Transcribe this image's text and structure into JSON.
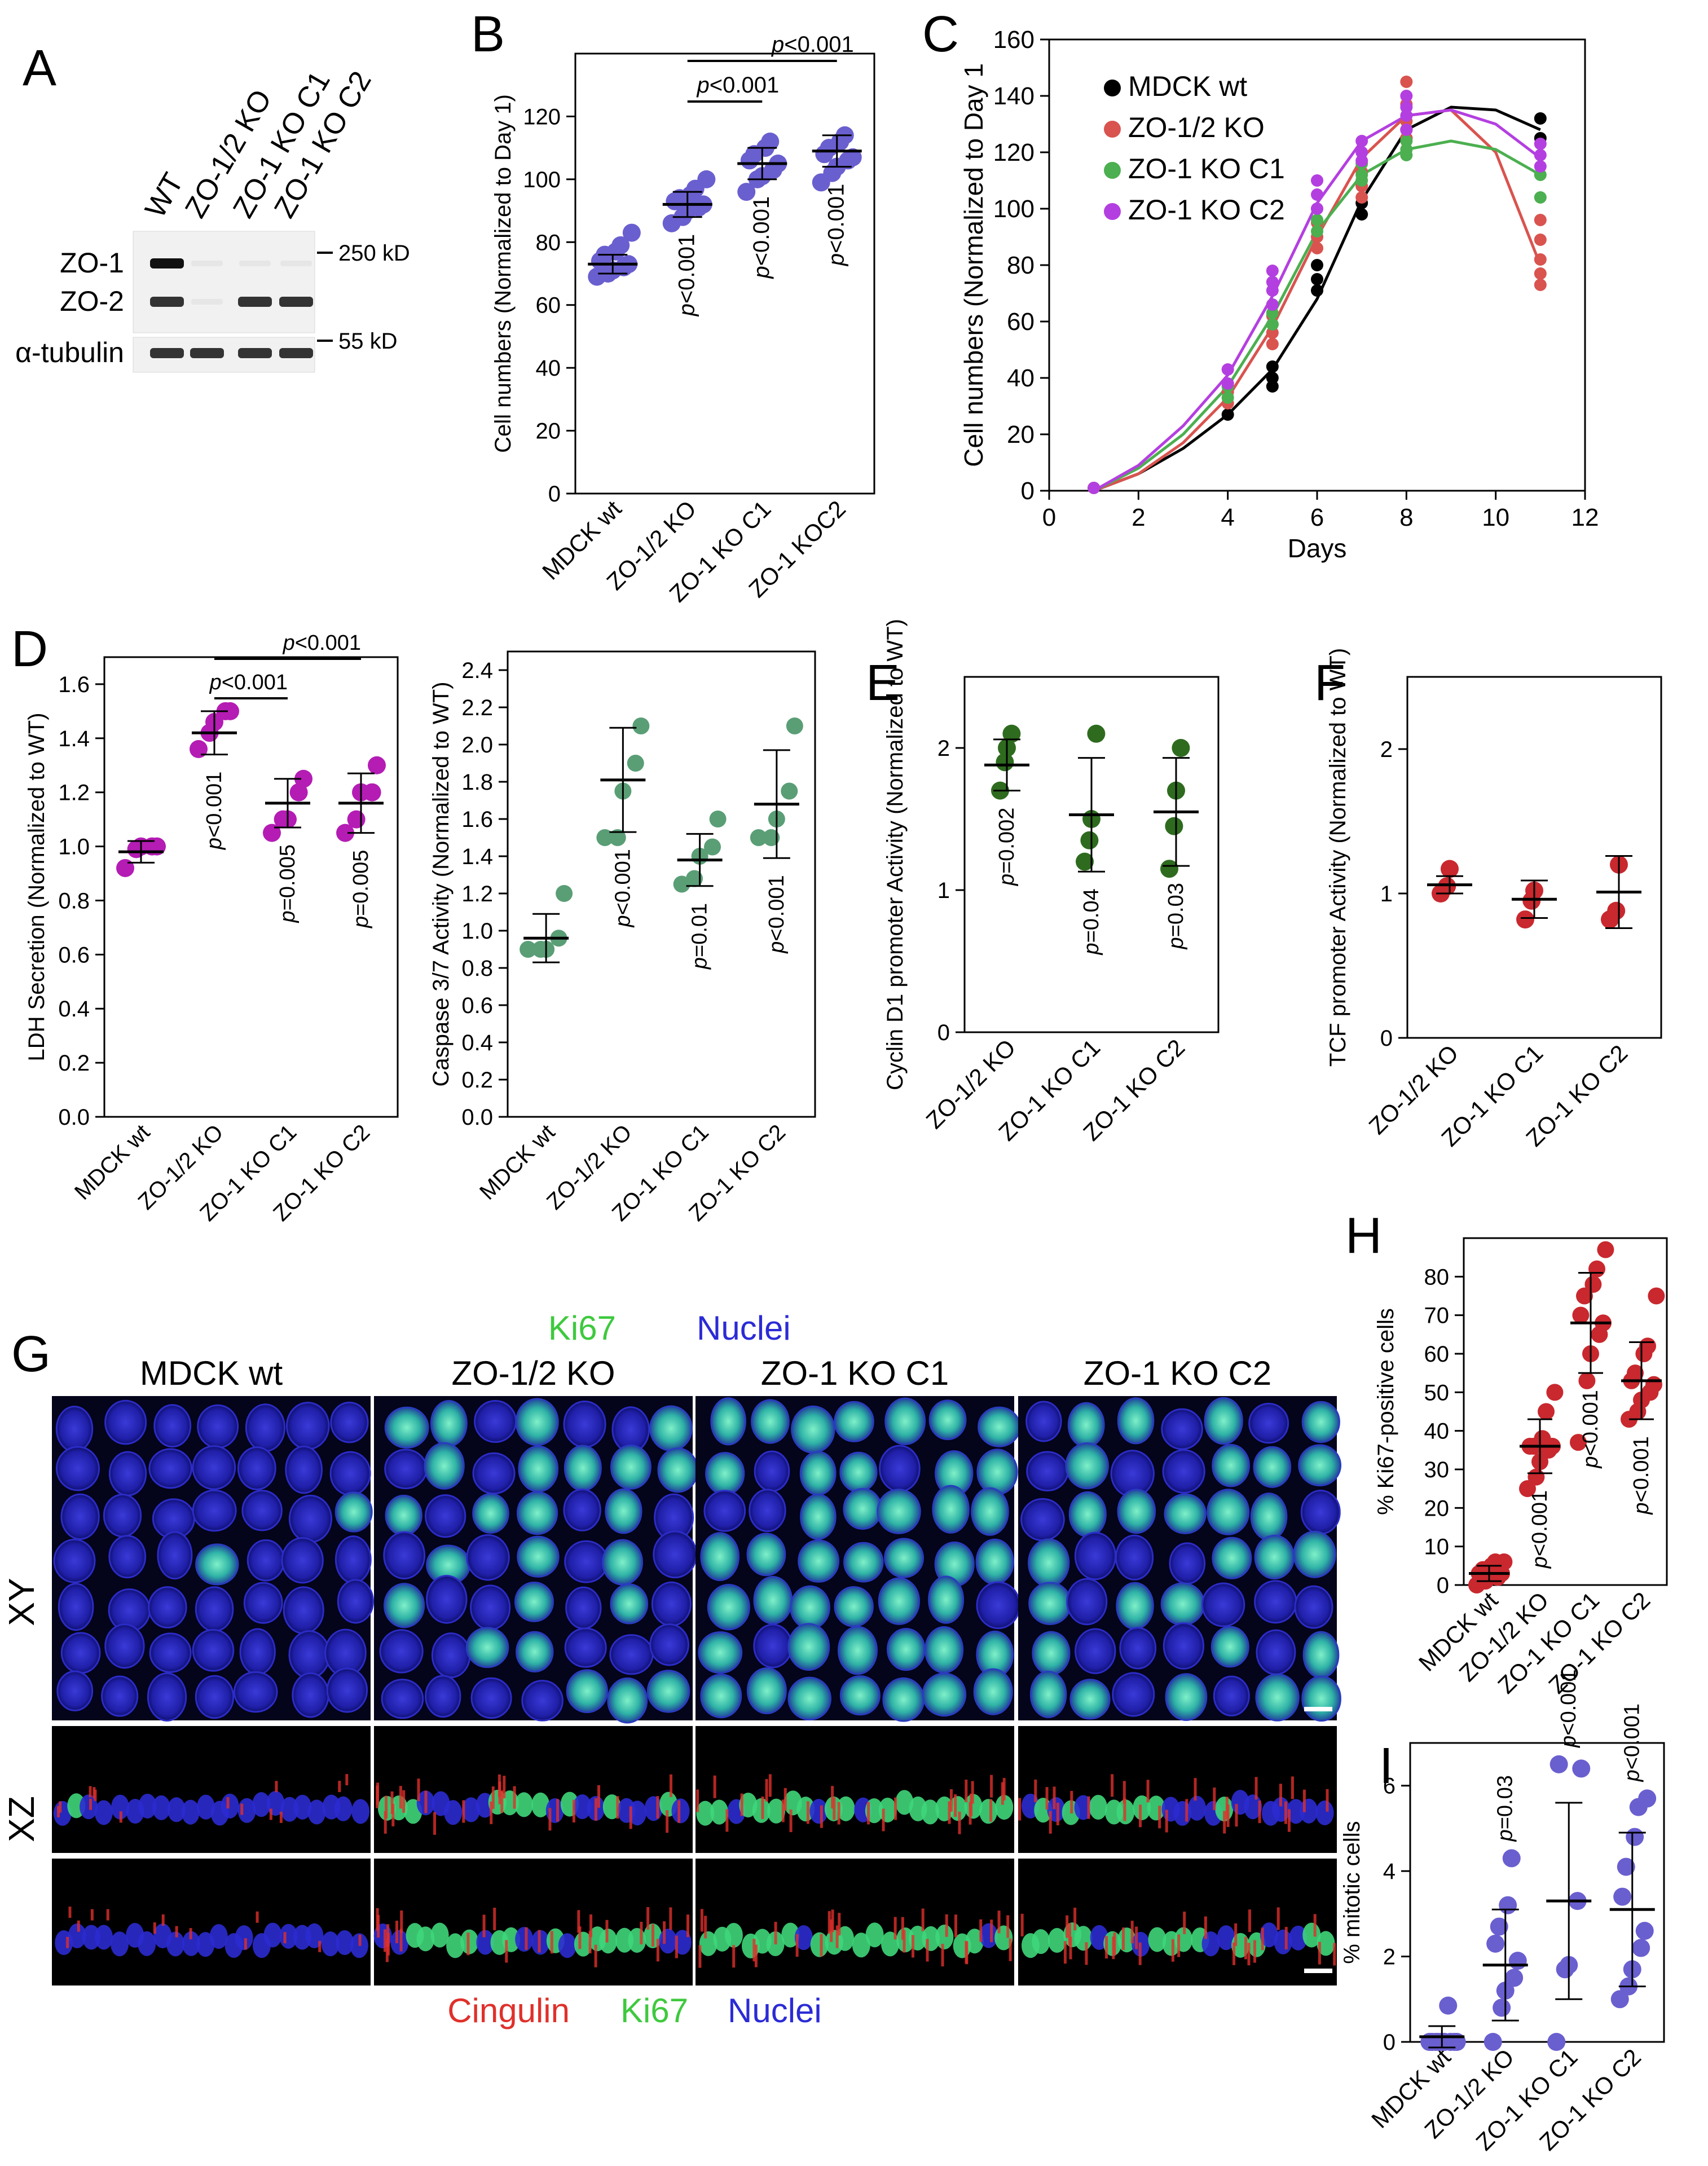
{
  "panel_letters": [
    "A",
    "B",
    "C",
    "D",
    "E",
    "F",
    "G",
    "H",
    "I"
  ],
  "colors": {
    "purple_B": "#6a5fcf",
    "black": "#000000",
    "red": "#d9534f",
    "green": "#4caf50",
    "violet": "#b43fe0",
    "magenta": "#b41cb4",
    "teal": "#5a9e76",
    "darkgreen": "#2e6b1f",
    "crimson": "#c8282e",
    "blue": "#1a1aff",
    "ki67": "#33cc33",
    "cingulin": "#e0302a"
  },
  "blot": {
    "lanes": [
      "WT",
      "ZO-1/2 KO",
      "ZO-1 KO C1",
      "ZO-1 KO C2"
    ],
    "bands": [
      "ZO-1",
      "ZO-2",
      "α-tubulin"
    ],
    "markers": [
      "250 kD",
      "55 kD"
    ],
    "presence": {
      "ZO-1": [
        1,
        0,
        0,
        0
      ],
      "ZO-2": [
        1,
        0,
        1,
        1
      ],
      "α-tubulin": [
        1,
        1,
        1,
        1
      ]
    }
  },
  "chart_data": [
    {
      "panel": "B",
      "type": "scatter",
      "ylabel": "Cell numbers (Normalized to Day 1)",
      "ylim": [
        0,
        140
      ],
      "yticks": [
        0,
        20,
        40,
        60,
        80,
        100,
        120
      ],
      "categories": [
        "MDCK wt",
        "ZO-1/2 KO",
        "ZO-1 KO C1",
        "ZO-1 KOC2"
      ],
      "points": [
        [
          69,
          70,
          71,
          72,
          73,
          74,
          76,
          77,
          79,
          83
        ],
        [
          86,
          88,
          90,
          91,
          92,
          93,
          94,
          95,
          97,
          100
        ],
        [
          96,
          100,
          101,
          103,
          105,
          106,
          108,
          110,
          112
        ],
        [
          99,
          102,
          104,
          106,
          107,
          108,
          110,
          112,
          114
        ]
      ],
      "means": [
        73,
        92,
        105,
        109
      ],
      "sd": [
        3,
        4,
        5,
        5
      ],
      "pvalues": [
        "",
        "p<0.001",
        "p<0.001",
        "p<0.001"
      ],
      "brackets": [
        {
          "from": 1,
          "to": 2,
          "label": "p<0.001"
        },
        {
          "from": 1,
          "to": 3,
          "label": "p<0.001"
        }
      ]
    },
    {
      "panel": "C",
      "type": "scatter",
      "xlabel": "Days",
      "ylabel": "Cell numbers (Normalized to Day 1",
      "xlim": [
        0,
        12
      ],
      "ylim": [
        0,
        160
      ],
      "xticks": [
        0,
        2,
        4,
        6,
        8,
        10,
        12
      ],
      "yticks": [
        0,
        20,
        40,
        60,
        80,
        100,
        120,
        140,
        160
      ],
      "series": [
        {
          "name": "MDCK wt",
          "x": [
            1,
            4,
            5,
            5,
            5,
            6,
            6,
            6,
            7,
            7,
            8,
            8,
            11,
            11
          ],
          "y": [
            1,
            27,
            37,
            40,
            44,
            71,
            75,
            80,
            98,
            102,
            125,
            128,
            125,
            132
          ]
        },
        {
          "name": "ZO-1/2 KO",
          "x": [
            1,
            4,
            4,
            5,
            5,
            5,
            5,
            6,
            6,
            6,
            7,
            7,
            7,
            8,
            8,
            8,
            8,
            11,
            11,
            11,
            11,
            11
          ],
          "y": [
            1,
            31,
            35,
            52,
            56,
            59,
            62,
            86,
            90,
            95,
            104,
            108,
            113,
            125,
            131,
            137,
            145,
            73,
            77,
            82,
            89,
            96
          ]
        },
        {
          "name": "ZO-1 KO C1",
          "x": [
            1,
            4,
            4,
            5,
            5,
            5,
            6,
            6,
            6,
            7,
            7,
            7,
            8,
            8,
            8,
            11,
            11
          ],
          "y": [
            1,
            33,
            37,
            59,
            63,
            66,
            92,
            96,
            100,
            110,
            112,
            116,
            119,
            121,
            124,
            104,
            112
          ]
        },
        {
          "name": "ZO-1 KO C2",
          "x": [
            1,
            4,
            4,
            5,
            5,
            5,
            5,
            6,
            6,
            6,
            7,
            7,
            7,
            8,
            8,
            8,
            8,
            11,
            11,
            11
          ],
          "y": [
            1,
            38,
            43,
            66,
            71,
            74,
            78,
            100,
            105,
            110,
            117,
            120,
            124,
            128,
            133,
            136,
            140,
            115,
            119,
            123
          ]
        }
      ],
      "fits": [
        {
          "name": "MDCK wt",
          "x": [
            1,
            2,
            3,
            4,
            5,
            6,
            7,
            8,
            9,
            10,
            11
          ],
          "y": [
            0,
            6,
            15,
            27,
            43,
            68,
            103,
            128,
            136,
            135,
            128
          ]
        },
        {
          "name": "ZO-1/2 KO",
          "x": [
            1,
            2,
            3,
            4,
            5,
            6,
            7,
            8,
            9,
            10,
            11
          ],
          "y": [
            0,
            6,
            17,
            33,
            58,
            90,
            118,
            133,
            135,
            120,
            80
          ]
        },
        {
          "name": "ZO-1 KO C1",
          "x": [
            1,
            2,
            3,
            4,
            5,
            6,
            7,
            8,
            9,
            10,
            11
          ],
          "y": [
            0,
            8,
            20,
            37,
            62,
            92,
            112,
            121,
            124,
            121,
            112
          ]
        },
        {
          "name": "ZO-1 KO C2",
          "x": [
            1,
            2,
            3,
            4,
            5,
            6,
            7,
            8,
            9,
            10,
            11
          ],
          "y": [
            0,
            9,
            23,
            41,
            69,
            102,
            124,
            133,
            135,
            130,
            118
          ]
        }
      ]
    },
    {
      "panel": "D1",
      "type": "scatter",
      "ylabel": "LDH Secretion (Normalized to WT)",
      "ylim": [
        0,
        1.7
      ],
      "yticks": [
        "0.0",
        "0.2",
        "0.4",
        "0.6",
        "0.8",
        "1.0",
        "1.2",
        "1.4",
        "1.6"
      ],
      "categories": [
        "MDCK wt",
        "ZO-1/2 KO",
        "ZO-1 KO C1",
        "ZO-1 KO C2"
      ],
      "points": [
        [
          0.92,
          0.99,
          1.0,
          1.0,
          1.0
        ],
        [
          1.36,
          1.42,
          1.46,
          1.5,
          1.5
        ],
        [
          1.05,
          1.1,
          1.1,
          1.2,
          1.25
        ],
        [
          1.05,
          1.1,
          1.2,
          1.2,
          1.3
        ]
      ],
      "means": [
        0.98,
        1.42,
        1.16,
        1.16
      ],
      "sd": [
        0.04,
        0.08,
        0.09,
        0.11
      ],
      "pvalues": [
        "",
        "p<0.001",
        "p=0.005",
        "p=0.005"
      ],
      "brackets": [
        {
          "from": 1,
          "to": 2,
          "label": "p<0.001"
        },
        {
          "from": 1,
          "to": 3,
          "label": "p<0.001"
        }
      ]
    },
    {
      "panel": "D2",
      "type": "scatter",
      "ylabel": "Caspase 3/7 Activity (Normalized to WT)",
      "ylim": [
        0,
        2.5
      ],
      "yticks": [
        "0.0",
        "0.2",
        "0.4",
        "0.6",
        "0.8",
        "1.0",
        "1.2",
        "1.4",
        "1.6",
        "1.8",
        "2.0",
        "2.2",
        "2.4"
      ],
      "categories": [
        "MDCK wt",
        "ZO-1/2 KO",
        "ZO-1 KO C1",
        "ZO-1 KO C2"
      ],
      "points": [
        [
          0.9,
          0.9,
          0.9,
          0.96,
          1.2
        ],
        [
          1.5,
          1.5,
          1.75,
          1.9,
          2.1
        ],
        [
          1.25,
          1.28,
          1.4,
          1.45,
          1.6
        ],
        [
          1.5,
          1.5,
          1.6,
          1.75,
          2.1
        ]
      ],
      "means": [
        0.96,
        1.81,
        1.38,
        1.68
      ],
      "sd": [
        0.13,
        0.28,
        0.14,
        0.29
      ],
      "pvalues": [
        "",
        "p<0.001",
        "p=0.01",
        "p<0.001"
      ]
    },
    {
      "panel": "E",
      "type": "scatter",
      "ylabel": "Cyclin D1 promoter Activity (Normalized to WT)",
      "ylim": [
        0,
        2.5
      ],
      "yticks": [
        "0",
        "1",
        "2"
      ],
      "categories": [
        "ZO-1/2 KO",
        "ZO-1 KO C1",
        "ZO-1 KO C2"
      ],
      "points": [
        [
          1.7,
          1.9,
          2.0,
          2.1
        ],
        [
          1.2,
          1.35,
          1.5,
          2.1
        ],
        [
          1.15,
          1.45,
          1.7,
          2.0
        ]
      ],
      "means": [
        1.88,
        1.53,
        1.55
      ],
      "sd": [
        0.18,
        0.4,
        0.38
      ],
      "pvalues": [
        "p=0.002",
        "p=0.04",
        "p=0.03"
      ]
    },
    {
      "panel": "F",
      "type": "scatter",
      "ylabel": "TCF promoter Activity (Normalized to WT)",
      "ylim": [
        0,
        2.5
      ],
      "yticks": [
        "0",
        "1",
        "2"
      ],
      "categories": [
        "ZO-1/2 KO",
        "ZO-1 KO C1",
        "ZO-1 KO C2"
      ],
      "points": [
        [
          1.0,
          1.05,
          1.17
        ],
        [
          0.82,
          0.95,
          1.02
        ],
        [
          0.82,
          0.88,
          1.2
        ]
      ],
      "means": [
        1.06,
        0.96,
        1.01
      ],
      "sd": [
        0.06,
        0.13,
        0.25
      ],
      "pvalues": [
        "",
        "",
        ""
      ]
    },
    {
      "panel": "H",
      "type": "scatter",
      "ylabel": "% Ki67-positive cells",
      "ylim": [
        0,
        90
      ],
      "yticks": [
        "0",
        "10",
        "20",
        "30",
        "40",
        "50",
        "60",
        "70",
        "80"
      ],
      "categories": [
        "MDCK wt",
        "ZO-1/2 KO",
        "ZO-1 KO C1",
        "ZO-1 KO C2"
      ],
      "points": [
        [
          0,
          1,
          2,
          2,
          3,
          3,
          4,
          5,
          6,
          6
        ],
        [
          25,
          28,
          32,
          35,
          36,
          36,
          36,
          38,
          45,
          50
        ],
        [
          37,
          53,
          60,
          65,
          68,
          70,
          75,
          78,
          82,
          87
        ],
        [
          43,
          45,
          48,
          50,
          52,
          53,
          55,
          60,
          62,
          75
        ]
      ],
      "means": [
        3,
        36,
        68,
        53
      ],
      "sd": [
        2,
        7,
        13,
        10
      ],
      "pvalues": [
        "",
        "p<0.001",
        "p<0.001",
        "p<0.001"
      ]
    },
    {
      "panel": "I",
      "type": "scatter",
      "ylabel": "% mitotic cells",
      "ylim": [
        0,
        7
      ],
      "yticks": [
        "0",
        "2",
        "4",
        "6"
      ],
      "categories": [
        "MDCK wt",
        "ZO-1/2 KO",
        "ZO-1 KO C1",
        "ZO-1 KO C2"
      ],
      "points": [
        [
          0,
          0,
          0,
          0,
          0,
          0,
          0,
          0,
          0.85,
          0
        ],
        [
          0,
          0.8,
          1.2,
          1.5,
          1.9,
          2.3,
          2.7,
          3.2,
          4.3
        ],
        [
          0,
          1.7,
          1.8,
          3.3,
          6.4,
          6.5
        ],
        [
          1.0,
          1.3,
          1.7,
          2.2,
          2.6,
          3.4,
          4.1,
          4.8,
          5.5,
          5.7
        ]
      ],
      "means": [
        0.12,
        1.8,
        3.3,
        3.1
      ],
      "sd": [
        0.25,
        1.3,
        2.3,
        1.8
      ],
      "pvalues": [
        "",
        "p=0.03",
        "p<0.001",
        "p<0.001"
      ]
    }
  ],
  "micro": {
    "legend_top": [
      {
        "text": "Ki67",
        "color": "#3ec93e"
      },
      {
        "text": "Nuclei",
        "color": "#2b2bd6"
      }
    ],
    "legend_bottom": [
      {
        "text": "Cingulin",
        "color": "#e0302a"
      },
      {
        "text": "Ki67",
        "color": "#3ec93e"
      },
      {
        "text": "Nuclei",
        "color": "#2b2bd6"
      }
    ],
    "columns": [
      "MDCK wt",
      "ZO-1/2 KO",
      "ZO-1 KO C1",
      "ZO-1 KO C2"
    ],
    "rows": [
      "XY",
      "XZ"
    ]
  }
}
